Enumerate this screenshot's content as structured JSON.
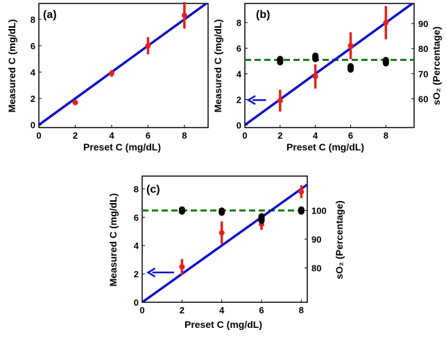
{
  "colors": {
    "fit_line": "#1010cc",
    "measured": "#e8211a",
    "so2": "#000000",
    "so2_mean": "#1a7a12",
    "arrow": "#1010cc"
  },
  "chart_data": [
    {
      "type": "scatter",
      "panel_label": "(a)",
      "xlabel": "Preset C (mg/dL)",
      "ylabel": "Measured C (mg/dL)",
      "xlim": [
        0,
        9.3
      ],
      "ylim": [
        -0.2,
        9.2
      ],
      "x_ticks": [
        0,
        2,
        4,
        6,
        8
      ],
      "y_ticks": [
        0,
        2,
        4,
        6,
        8
      ],
      "fit_line": {
        "x": [
          0,
          9.3
        ],
        "y": [
          0,
          9.3
        ]
      },
      "series": [
        {
          "x": [
            2,
            4,
            6,
            8
          ],
          "y": [
            1.7,
            3.9,
            6.0,
            8.3
          ],
          "err": [
            0.2,
            0.25,
            0.65,
            1.0
          ]
        }
      ]
    },
    {
      "type": "scatter",
      "panel_label": "(b)",
      "xlabel": "Preset C (mg/dL)",
      "ylabel": "Measured C (mg/dL)",
      "y2label": "sO₂ (Percentage)",
      "xlim": [
        0,
        9.6
      ],
      "ylim": [
        -0.2,
        9.5
      ],
      "y2lim": [
        48.5,
        98
      ],
      "x_ticks": [
        0,
        2,
        4,
        6,
        8
      ],
      "y_ticks": [
        0,
        2,
        4,
        6,
        8
      ],
      "y2_ticks": [
        60,
        70,
        80,
        90
      ],
      "fit_line": {
        "x": [
          0,
          9.6
        ],
        "y": [
          0,
          9.6
        ]
      },
      "series": [
        {
          "x": [
            2,
            4,
            6,
            8
          ],
          "y": [
            1.9,
            3.8,
            6.2,
            8.0
          ],
          "err": [
            0.85,
            0.95,
            1.05,
            1.3
          ]
        },
        {
          "axis": "right",
          "x": [
            2,
            4,
            6,
            8
          ],
          "y": [
            75.2,
            76.5,
            72.3,
            74.8
          ],
          "err": [
            0.8,
            0.8,
            0.8,
            0.8
          ]
        }
      ],
      "so2_mean": 75.5,
      "arrow": {
        "from_x": 1.2,
        "to_x": 0.2,
        "y": 1.95
      }
    },
    {
      "type": "scatter",
      "panel_label": "(c)",
      "xlabel": "Preset C (mg/dL)",
      "ylabel": "Measured C (mg/dL)",
      "y2label": "sO₂ (Percentage)",
      "xlim": [
        0,
        8.3
      ],
      "ylim": [
        0,
        8.9
      ],
      "y2lim": [
        68,
        112
      ],
      "x_ticks": [
        0,
        2,
        4,
        6,
        8
      ],
      "y_ticks": [
        0,
        2,
        4,
        6,
        8
      ],
      "y2_ticks": [
        80,
        90,
        100
      ],
      "fit_line": {
        "x": [
          0,
          8.3
        ],
        "y": [
          0,
          8.3
        ]
      },
      "series": [
        {
          "x": [
            2,
            4,
            6,
            8
          ],
          "y": [
            2.5,
            4.9,
            5.5,
            7.8
          ],
          "err": [
            0.55,
            0.8,
            0.4,
            0.45
          ]
        },
        {
          "axis": "right",
          "x": [
            2,
            4,
            6,
            8
          ],
          "y": [
            100,
            99.6,
            97.2,
            100
          ],
          "err": [
            0.5,
            0.5,
            0.9,
            0.5
          ]
        }
      ],
      "so2_mean": 100,
      "arrow": {
        "from_x": 1.6,
        "to_x": 0.3,
        "y": 2.1
      }
    }
  ]
}
